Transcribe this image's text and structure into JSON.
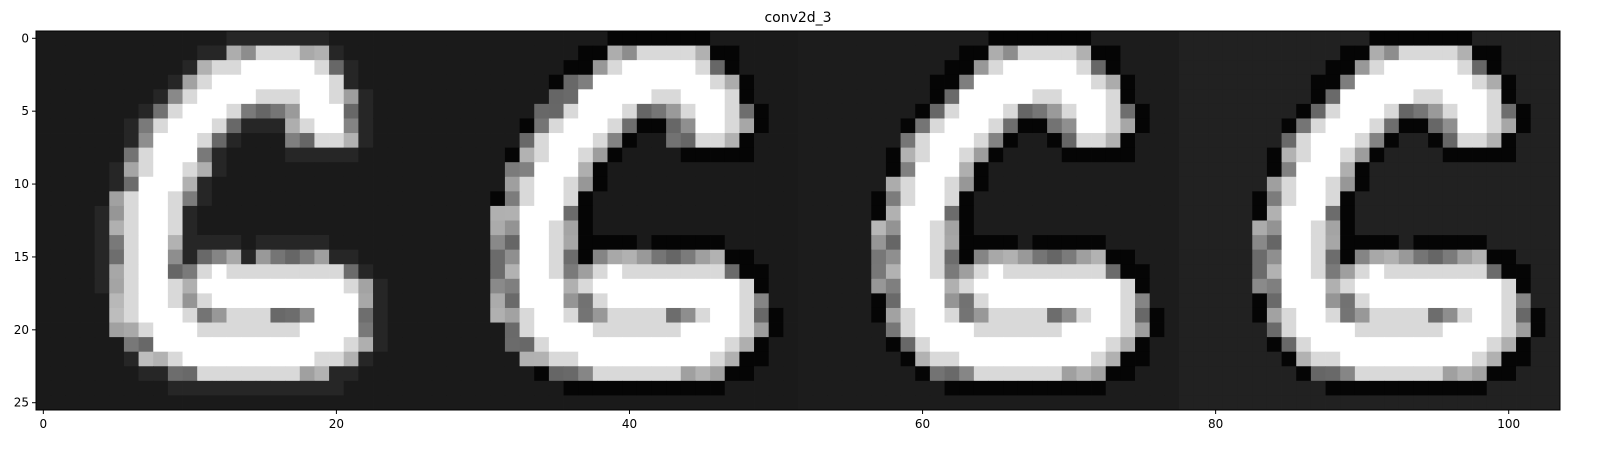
{
  "chart_data": {
    "type": "heatmap",
    "title": "conv2d_3",
    "xlabel": "",
    "ylabel": "",
    "colormap": "gray",
    "grid": false,
    "xlim": [
      -0.5,
      103.5
    ],
    "ylim": [
      25.5,
      -0.5
    ],
    "x_ticks": [
      0,
      20,
      40,
      60,
      80,
      100
    ],
    "y_ticks": [
      0,
      5,
      10,
      15,
      20,
      25
    ],
    "tile_shape": [
      26,
      26
    ],
    "tile_backgrounds": [
      0.1,
      0.1,
      0.11,
      0.13
    ],
    "glyph": {
      "strokes": [
        [
          [
            15.5,
            2.5
          ],
          [
            12.5,
            3.5
          ],
          [
            10.5,
            5.5
          ],
          [
            9,
            7.5
          ],
          [
            8,
            10
          ],
          [
            7.2,
            13
          ],
          [
            7.2,
            16
          ],
          [
            7.5,
            18.5
          ],
          [
            8.5,
            20
          ],
          [
            10.5,
            21.2
          ],
          [
            13.5,
            21.5
          ],
          [
            16.5,
            21.3
          ],
          [
            19,
            20.8
          ],
          [
            20.2,
            19.5
          ],
          [
            20,
            18
          ],
          [
            18.5,
            17.2
          ],
          [
            16,
            17.2
          ],
          [
            13.5,
            17.5
          ],
          [
            12,
            17
          ]
        ],
        [
          [
            15.5,
            2.5
          ],
          [
            17.5,
            2.8
          ],
          [
            18.6,
            4
          ],
          [
            19.2,
            5.5
          ]
        ]
      ],
      "stroke_width": 2.1
    },
    "tiles": [
      {
        "index": 0,
        "dx": 0,
        "dy": 0,
        "fringe_dx": -0.9,
        "fringe_dy": 0.3,
        "fringe_level": 0.6,
        "edge_dark": false
      },
      {
        "index": 1,
        "dx": 0.6,
        "dy": 0,
        "fringe_dx": -1.2,
        "fringe_dy": 0.4,
        "fringe_level": 0.55,
        "edge_dark": true
      },
      {
        "index": 2,
        "dx": 0.6,
        "dy": 0,
        "fringe_dx": -0.8,
        "fringe_dy": 0.3,
        "fringe_level": 0.6,
        "edge_dark": true
      },
      {
        "index": 3,
        "dx": 0.6,
        "dy": 0,
        "fringe_dx": -0.8,
        "fringe_dy": 0.3,
        "fringe_level": 0.55,
        "edge_dark": true
      }
    ]
  }
}
